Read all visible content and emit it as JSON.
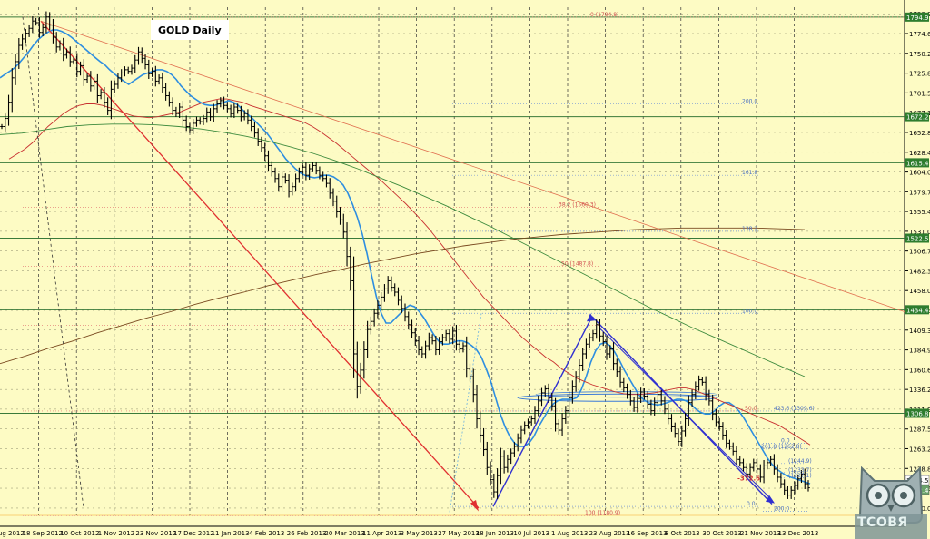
{
  "chart_data": {
    "type": "line",
    "title": "GOLD Daily",
    "y_ticks": [
      1190.0,
      1214.5,
      1238.8,
      1263.2,
      1287.5,
      1311.9,
      1336.2,
      1360.6,
      1384.9,
      1409.3,
      1433.6,
      1458.0,
      1482.3,
      1506.7,
      1531.0,
      1555.4,
      1579.7,
      1604.0,
      1628.4,
      1652.8,
      1677.1,
      1701.5,
      1725.8,
      1750.2,
      1774.6,
      1798.9
    ],
    "ylim": [
      1181.0,
      1807.0
    ],
    "x_ticks": [
      "28 Aug 2012",
      "18 Sep 2012",
      "10 Oct 2012",
      "1 Nov 2012",
      "23 Nov 2012",
      "17 Dec 2012",
      "11 Jan 2013",
      "4 Feb 2013",
      "26 Feb 2013",
      "20 Mar 2013",
      "11 Apr 2013",
      "3 May 2013",
      "27 May 2013",
      "18 Jun 2013",
      "10 Jul 2013",
      "1 Aug 2013",
      "23 Aug 2013",
      "16 Sep 2013",
      "8 Oct 2013",
      "30 Oct 2013",
      "21 Nov 2013",
      "13 Dec 2013"
    ],
    "horizontal_levels": [
      {
        "label": "1794.9",
        "value": 1794.9
      },
      {
        "label": "1672.2",
        "value": 1672.2
      },
      {
        "label": "1615.4",
        "value": 1615.4
      },
      {
        "label": "1522.5",
        "value": 1522.5
      },
      {
        "label": "1434.4",
        "value": 1434.4
      },
      {
        "label": "1306.8",
        "value": 1306.8
      }
    ],
    "current_price_labels": [
      {
        "label": "1224.5",
        "value": 1224.5
      },
      {
        "label": "1212.4",
        "value": 1212.4
      }
    ],
    "fibonacci_labels": [
      "0 (1794.8)",
      "200.0",
      "161.8",
      "38.2 (1560.3)",
      "138.2",
      "50 (1487.8)",
      "100.0",
      "423.6 (1309.6)",
      "50.0",
      "0.0",
      "261.8 (1262.8)",
      "(1244.9)",
      "(1233.7)",
      "(1227.1)",
      "-372.6",
      "200.0",
      "100 (1180.9)",
      "0.0"
    ],
    "series": [
      {
        "values": [
          1660,
          1670,
          1690,
          1720,
          1740,
          1760,
          1768,
          1775,
          1781,
          1790,
          1788,
          1776,
          1782,
          1795,
          1785,
          1770,
          1758,
          1762,
          1748,
          1752,
          1740,
          1742,
          1728,
          1735,
          1718,
          1722,
          1710,
          1716,
          1698,
          1702,
          1690,
          1680,
          1706,
          1712,
          1720,
          1726,
          1730,
          1728,
          1732,
          1742,
          1752,
          1744,
          1736,
          1725,
          1728,
          1716,
          1720,
          1708,
          1698,
          1690,
          1680,
          1676,
          1684,
          1668,
          1660,
          1656,
          1664,
          1668,
          1666,
          1670,
          1678,
          1672,
          1682,
          1688,
          1692,
          1686,
          1682,
          1676,
          1684,
          1680,
          1672,
          1676,
          1668,
          1660,
          1652,
          1642,
          1634,
          1624,
          1612,
          1604,
          1596,
          1586,
          1598,
          1594,
          1580,
          1586,
          1596,
          1604,
          1610,
          1600,
          1608,
          1612,
          1606,
          1600,
          1596,
          1590,
          1578,
          1568,
          1555,
          1545,
          1530,
          1500,
          1470,
          1380,
          1340,
          1360,
          1385,
          1410,
          1420,
          1430,
          1440,
          1450,
          1460,
          1470,
          1462,
          1456,
          1446,
          1436,
          1426,
          1416,
          1406,
          1396,
          1385,
          1380,
          1390,
          1400,
          1396,
          1385,
          1395,
          1400,
          1405,
          1398,
          1408,
          1392,
          1386,
          1390,
          1362,
          1352,
          1330,
          1300,
          1280,
          1262,
          1240,
          1225,
          1210,
          1230,
          1254,
          1240,
          1250,
          1258,
          1266,
          1276,
          1286,
          1292,
          1296,
          1300,
          1310,
          1322,
          1332,
          1337,
          1326,
          1316,
          1294,
          1286,
          1300,
          1310,
          1326,
          1340,
          1352,
          1366,
          1380,
          1392,
          1400,
          1405,
          1416,
          1402,
          1395,
          1380,
          1386,
          1368,
          1358,
          1345,
          1338,
          1330,
          1322,
          1314,
          1325,
          1333,
          1328,
          1318,
          1310,
          1320,
          1330,
          1322,
          1312,
          1300,
          1290,
          1282,
          1272,
          1285,
          1300,
          1320,
          1330,
          1340,
          1348,
          1345,
          1330,
          1322,
          1306,
          1296,
          1290,
          1280,
          1270,
          1266,
          1260,
          1250,
          1246,
          1240,
          1232,
          1240,
          1246,
          1238,
          1228,
          1242,
          1246,
          1250,
          1238,
          1228,
          1220,
          1212,
          1206,
          1212,
          1218,
          1226,
          1232,
          1220,
          1215
        ]
      },
      {
        "values": [
          1720,
          1724,
          1728,
          1732,
          1738,
          1745,
          1752,
          1760,
          1767,
          1772,
          1776,
          1779,
          1779,
          1777,
          1774,
          1770,
          1765,
          1760,
          1755,
          1750,
          1745,
          1740,
          1736,
          1730,
          1725,
          1720,
          1716,
          1712,
          1716,
          1720,
          1724,
          1726,
          1728,
          1730,
          1730,
          1728,
          1724,
          1718,
          1710,
          1704,
          1698,
          1694,
          1690,
          1687,
          1686,
          1686,
          1688,
          1690,
          1692,
          1690,
          1686,
          1680,
          1675,
          1670,
          1664,
          1658,
          1652,
          1644,
          1636,
          1628,
          1620,
          1614,
          1608,
          1603,
          1600,
          1598,
          1597,
          1598,
          1600,
          1600,
          1598,
          1594,
          1588,
          1578,
          1564,
          1548,
          1528,
          1504,
          1476,
          1450,
          1430,
          1418,
          1418,
          1424,
          1430,
          1436,
          1440,
          1438,
          1432,
          1424,
          1414,
          1404,
          1396,
          1392,
          1392,
          1394,
          1396,
          1396,
          1394,
          1390,
          1385,
          1376,
          1362,
          1346,
          1326,
          1306,
          1290,
          1278,
          1270,
          1266,
          1266,
          1270,
          1278,
          1290,
          1300,
          1310,
          1318,
          1322,
          1324,
          1324,
          1324,
          1326,
          1336,
          1352,
          1370,
          1384,
          1392,
          1394,
          1390,
          1382,
          1372,
          1360,
          1350,
          1340,
          1330,
          1324,
          1320,
          1318,
          1317,
          1318,
          1320,
          1322,
          1324,
          1324,
          1322,
          1318,
          1312,
          1308,
          1306,
          1306,
          1310,
          1316,
          1320,
          1320,
          1316,
          1310,
          1302,
          1292,
          1282,
          1272,
          1262,
          1252,
          1244,
          1238,
          1234,
          1230,
          1228,
          1226,
          1224,
          1222,
          1220
        ]
      },
      {
        "values": [
          1620,
          1626,
          1632,
          1640,
          1650,
          1660,
          1668,
          1676,
          1682,
          1686,
          1688,
          1688,
          1686,
          1683,
          1680,
          1676,
          1673,
          1672,
          1671,
          1672,
          1674,
          1676,
          1678,
          1682,
          1686,
          1690,
          1692,
          1694,
          1694,
          1692,
          1690,
          1686,
          1683,
          1680,
          1677,
          1674,
          1671,
          1668,
          1665,
          1660,
          1654,
          1647,
          1640,
          1632,
          1624,
          1616,
          1608,
          1600,
          1592,
          1583,
          1574,
          1565,
          1555,
          1545,
          1534,
          1522,
          1510,
          1498,
          1486,
          1474,
          1462,
          1450,
          1440,
          1430,
          1420,
          1410,
          1400,
          1392,
          1384,
          1376,
          1370,
          1362,
          1356,
          1350,
          1346,
          1342,
          1339,
          1336,
          1333,
          1331,
          1330,
          1330,
          1331,
          1332,
          1334,
          1336,
          1338,
          1338,
          1336,
          1332,
          1328,
          1324,
          1320,
          1316,
          1312,
          1308,
          1304,
          1300,
          1296,
          1292,
          1286,
          1280,
          1274,
          1268
        ]
      },
      {
        "values": [
          1650,
          1652,
          1656,
          1660,
          1662,
          1663,
          1663,
          1662,
          1660,
          1657,
          1653,
          1648,
          1642,
          1635,
          1627,
          1618,
          1608,
          1597,
          1586,
          1574,
          1562,
          1549,
          1536,
          1522,
          1508,
          1494,
          1480,
          1466,
          1452,
          1438,
          1425,
          1412,
          1400,
          1388,
          1376,
          1364,
          1352
        ]
      },
      {
        "values": [
          1368,
          1377,
          1387,
          1396,
          1406,
          1415,
          1424,
          1432,
          1441,
          1449,
          1456,
          1464,
          1471,
          1478,
          1484,
          1491,
          1497,
          1503,
          1508,
          1513,
          1517,
          1521,
          1524,
          1527,
          1529,
          1531,
          1533,
          1534,
          1535,
          1535,
          1535,
          1535,
          1534,
          1533
        ]
      }
    ]
  },
  "watermark": {
    "text": "ТСОВЯ"
  }
}
